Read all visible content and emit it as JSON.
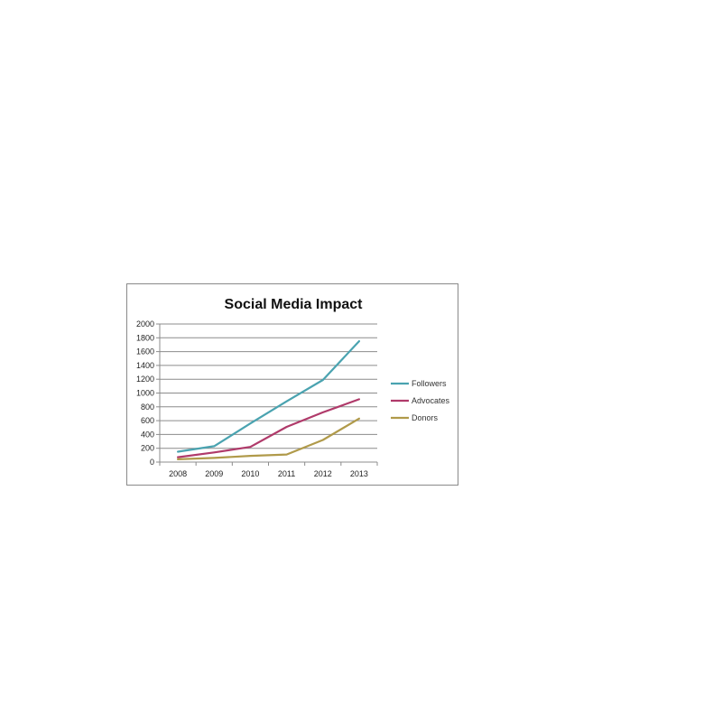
{
  "chart_data": {
    "type": "line",
    "title": "Social Media Impact",
    "xlabel": "",
    "ylabel": "",
    "categories": [
      "2008",
      "2009",
      "2010",
      "2011",
      "2012",
      "2013"
    ],
    "ylim": [
      0,
      2000
    ],
    "yticks": [
      0,
      200,
      400,
      600,
      800,
      1000,
      1200,
      1400,
      1600,
      1800,
      2000
    ],
    "grid": true,
    "legend_position": "right",
    "series": [
      {
        "name": "Followers",
        "color": "#4aa3b0",
        "values": [
          150,
          230,
          560,
          880,
          1190,
          1750
        ]
      },
      {
        "name": "Advocates",
        "color": "#b03a6a",
        "values": [
          70,
          140,
          220,
          510,
          720,
          910
        ]
      },
      {
        "name": "Donors",
        "color": "#b09a4a",
        "values": [
          40,
          60,
          90,
          110,
          320,
          630
        ]
      }
    ]
  }
}
